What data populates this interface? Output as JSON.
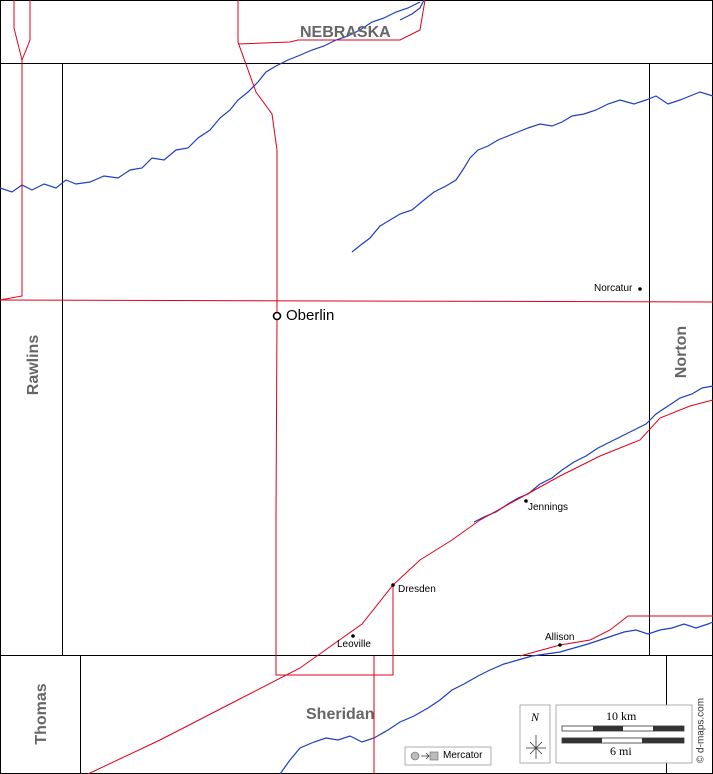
{
  "places": {
    "county_seat": "Oberlin",
    "towns": [
      "Norcatur",
      "Jennings",
      "Dresden",
      "Leoville",
      "Allison"
    ]
  },
  "regions": {
    "north": "NEBRASKA",
    "west": "Rawlins",
    "east": "Norton",
    "southwest": "Thomas",
    "south": "Sheridan"
  },
  "legend": {
    "north_label": "N",
    "scale_km": "10 km",
    "scale_mi": "6 mi",
    "projection": "Mercator",
    "credit": "© d-maps.com"
  },
  "colors": {
    "border": "#000000",
    "road": "#e0001a",
    "river": "#1e3fbf",
    "region_label": "#666666"
  }
}
